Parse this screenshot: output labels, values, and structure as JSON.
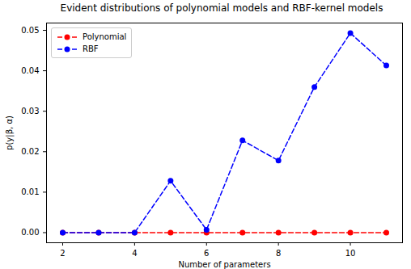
{
  "chart_data": {
    "type": "line",
    "title": "Evident distributions of polynomial models and RBF-kernel models",
    "x_label": "Number of parameters",
    "y_label": "p(y|β, α)",
    "x": [
      2,
      3,
      4,
      5,
      6,
      7,
      8,
      9,
      10,
      11
    ],
    "series": [
      {
        "name": "Polynomial",
        "color": "#ff0000",
        "marker": "o",
        "line_style": "dashed",
        "values": [
          0,
          0,
          0,
          0,
          0,
          0,
          0,
          0,
          0,
          0
        ]
      },
      {
        "name": "RBF",
        "color": "#0000ff",
        "marker": "o",
        "line_style": "dashed",
        "values": [
          0,
          0,
          0,
          0.0128,
          0.0007,
          0.0228,
          0.0178,
          0.036,
          0.0493,
          0.0413
        ]
      }
    ],
    "xlim": [
      1.55,
      11.45
    ],
    "xticks": [
      2,
      4,
      6,
      8,
      10
    ],
    "ylim": [
      -0.0025,
      0.0518
    ],
    "yticks": [
      {
        "value": 0,
        "label": "0.00"
      },
      {
        "value": 0.01,
        "label": "0.01"
      },
      {
        "value": 0.02,
        "label": "0.02"
      },
      {
        "value": 0.03,
        "label": "0.03"
      },
      {
        "value": 0.04,
        "label": "0.04"
      },
      {
        "value": 0.05,
        "label": "0.05"
      }
    ],
    "grid": false,
    "legend": "upper left"
  }
}
